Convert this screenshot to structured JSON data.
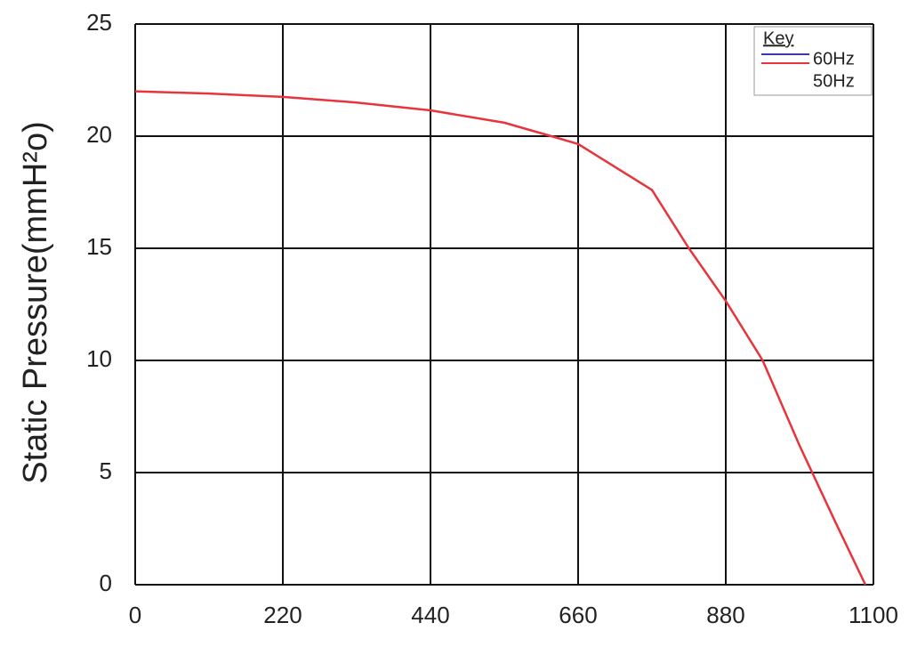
{
  "chart_data": {
    "type": "line",
    "y_axis_label": "Static Pressure(mmH²o)",
    "legend_title": "Key",
    "x": [
      0,
      110,
      220,
      330,
      440,
      550,
      620,
      660,
      770,
      825,
      880,
      935,
      990,
      1044,
      1088
    ],
    "series": [
      {
        "name": "60Hz",
        "color": "#3a3ab0",
        "values": [
          null,
          null,
          null,
          null,
          null,
          null,
          null,
          null,
          null,
          null,
          null,
          null,
          null,
          null,
          null
        ]
      },
      {
        "name": "50Hz",
        "color": "#e8343c",
        "values": [
          22.0,
          21.9,
          21.75,
          21.5,
          21.15,
          20.6,
          20.0,
          19.65,
          17.6,
          15.0,
          12.65,
          10.0,
          6.2,
          2.75,
          0
        ]
      }
    ],
    "xlim": [
      0,
      1100
    ],
    "xticks": [
      0,
      220,
      440,
      660,
      880,
      1100
    ],
    "ylim": [
      0,
      25
    ],
    "yticks": [
      0,
      5,
      10,
      15,
      20,
      25
    ],
    "grid": true,
    "legend_position": "upper right"
  }
}
